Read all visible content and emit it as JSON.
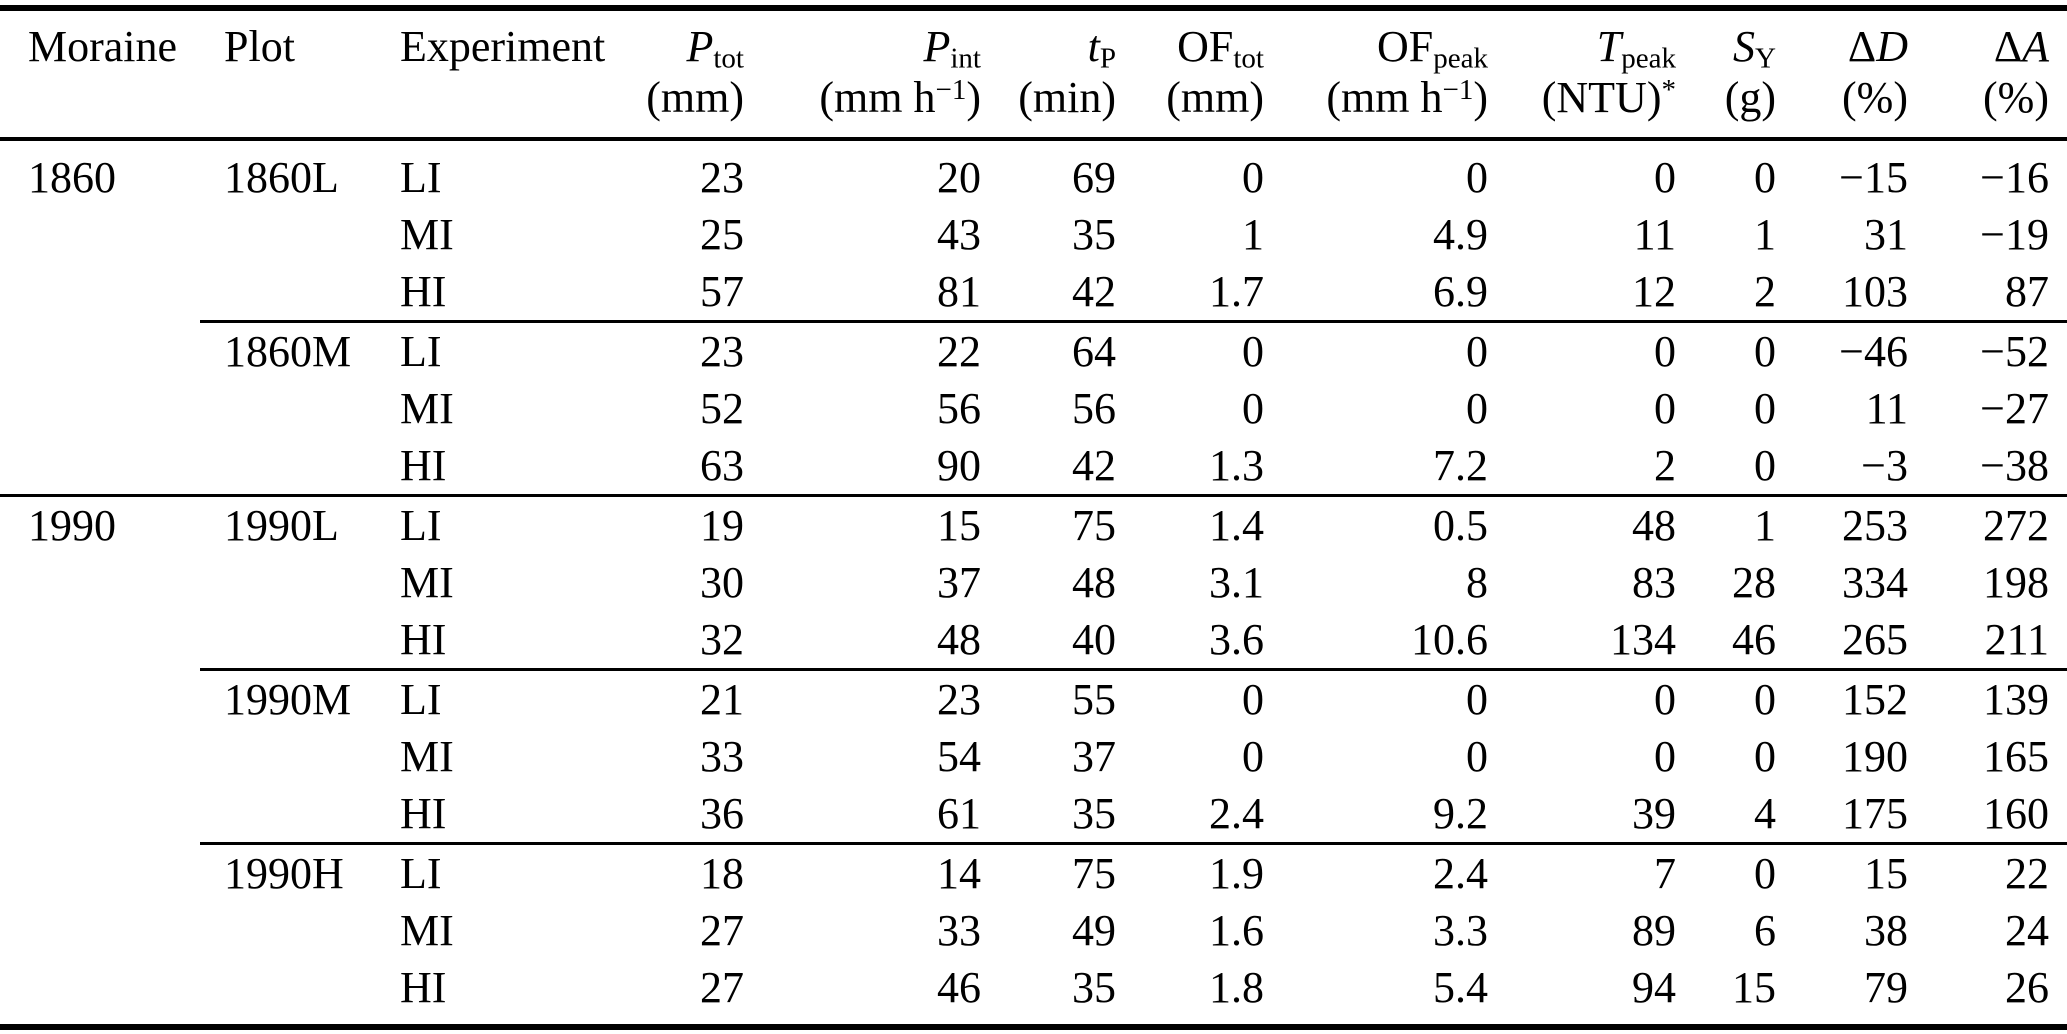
{
  "table": {
    "columns": [
      {
        "id": "moraine",
        "align": "left",
        "label": {
          "pre": "Moraine",
          "main": "",
          "main_italic": false,
          "sub": ""
        },
        "unit": {
          "pre": "",
          "sup": "",
          "post": ""
        }
      },
      {
        "id": "plot",
        "align": "left",
        "label": {
          "pre": "Plot",
          "main": "",
          "main_italic": false,
          "sub": ""
        },
        "unit": {
          "pre": "",
          "sup": "",
          "post": ""
        }
      },
      {
        "id": "experiment",
        "align": "left",
        "label": {
          "pre": "Experiment",
          "main": "",
          "main_italic": false,
          "sub": ""
        },
        "unit": {
          "pre": "",
          "sup": "",
          "post": ""
        }
      },
      {
        "id": "p-tot",
        "align": "right",
        "label": {
          "pre": "",
          "main": "P",
          "main_italic": true,
          "sub": "tot"
        },
        "unit": {
          "pre": "(mm)",
          "sup": "",
          "post": ""
        }
      },
      {
        "id": "p-int",
        "align": "right",
        "label": {
          "pre": "",
          "main": "P",
          "main_italic": true,
          "sub": "int"
        },
        "unit": {
          "pre": "(mm h",
          "sup": "−1",
          "post": ")"
        }
      },
      {
        "id": "t-p",
        "align": "right",
        "label": {
          "pre": "",
          "main": "t",
          "main_italic": true,
          "sub": "P"
        },
        "unit": {
          "pre": "(min)",
          "sup": "",
          "post": ""
        }
      },
      {
        "id": "of-tot",
        "align": "right",
        "label": {
          "pre": "",
          "main": "OF",
          "main_italic": false,
          "sub": "tot"
        },
        "unit": {
          "pre": "(mm)",
          "sup": "",
          "post": ""
        }
      },
      {
        "id": "of-peak",
        "align": "right",
        "label": {
          "pre": "",
          "main": "OF",
          "main_italic": false,
          "sub": "peak"
        },
        "unit": {
          "pre": "(mm h",
          "sup": "−1",
          "post": ")"
        }
      },
      {
        "id": "t-peak",
        "align": "right",
        "label": {
          "pre": "",
          "main": "T",
          "main_italic": true,
          "sub": "peak"
        },
        "unit": {
          "pre": "(NTU)",
          "sup": "*",
          "post": ""
        }
      },
      {
        "id": "s-y",
        "align": "right",
        "label": {
          "pre": "",
          "main": "S",
          "main_italic": true,
          "sub": "Y"
        },
        "unit": {
          "pre": "(g)",
          "sup": "",
          "post": ""
        }
      },
      {
        "id": "delta-d",
        "align": "right",
        "label": {
          "pre": "Δ",
          "main": "D",
          "main_italic": true,
          "sub": ""
        },
        "unit": {
          "pre": "(%)",
          "sup": "",
          "post": ""
        }
      },
      {
        "id": "delta-a",
        "align": "right",
        "label": {
          "pre": "Δ",
          "main": "A",
          "main_italic": true,
          "sub": ""
        },
        "unit": {
          "pre": "(%)",
          "sup": "",
          "post": ""
        }
      }
    ],
    "groups": [
      {
        "moraine": "1860",
        "plot": "1860L",
        "separator": "none",
        "rows": [
          {
            "experiment": "LI",
            "values": [
              "23",
              "20",
              "69",
              "0",
              "0",
              "0",
              "0",
              "−15",
              "−16"
            ]
          },
          {
            "experiment": "MI",
            "values": [
              "25",
              "43",
              "35",
              "1",
              "4.9",
              "11",
              "1",
              "31",
              "−19"
            ]
          },
          {
            "experiment": "HI",
            "values": [
              "57",
              "81",
              "42",
              "1.7",
              "6.9",
              "12",
              "2",
              "103",
              "87"
            ]
          }
        ]
      },
      {
        "moraine": "",
        "plot": "1860M",
        "separator": "partial",
        "rows": [
          {
            "experiment": "LI",
            "values": [
              "23",
              "22",
              "64",
              "0",
              "0",
              "0",
              "0",
              "−46",
              "−52"
            ]
          },
          {
            "experiment": "MI",
            "values": [
              "52",
              "56",
              "56",
              "0",
              "0",
              "0",
              "0",
              "11",
              "−27"
            ]
          },
          {
            "experiment": "HI",
            "values": [
              "63",
              "90",
              "42",
              "1.3",
              "7.2",
              "2",
              "0",
              "−3",
              "−38"
            ]
          }
        ]
      },
      {
        "moraine": "1990",
        "plot": "1990L",
        "separator": "full",
        "rows": [
          {
            "experiment": "LI",
            "values": [
              "19",
              "15",
              "75",
              "1.4",
              "0.5",
              "48",
              "1",
              "253",
              "272"
            ]
          },
          {
            "experiment": "MI",
            "values": [
              "30",
              "37",
              "48",
              "3.1",
              "8",
              "83",
              "28",
              "334",
              "198"
            ]
          },
          {
            "experiment": "HI",
            "values": [
              "32",
              "48",
              "40",
              "3.6",
              "10.6",
              "134",
              "46",
              "265",
              "211"
            ]
          }
        ]
      },
      {
        "moraine": "",
        "plot": "1990M",
        "separator": "partial",
        "rows": [
          {
            "experiment": "LI",
            "values": [
              "21",
              "23",
              "55",
              "0",
              "0",
              "0",
              "0",
              "152",
              "139"
            ]
          },
          {
            "experiment": "MI",
            "values": [
              "33",
              "54",
              "37",
              "0",
              "0",
              "0",
              "0",
              "190",
              "165"
            ]
          },
          {
            "experiment": "HI",
            "values": [
              "36",
              "61",
              "35",
              "2.4",
              "9.2",
              "39",
              "4",
              "175",
              "160"
            ]
          }
        ]
      },
      {
        "moraine": "",
        "plot": "1990H",
        "separator": "partial",
        "rows": [
          {
            "experiment": "LI",
            "values": [
              "18",
              "14",
              "75",
              "1.9",
              "2.4",
              "7",
              "0",
              "15",
              "22"
            ]
          },
          {
            "experiment": "MI",
            "values": [
              "27",
              "33",
              "49",
              "1.6",
              "3.3",
              "89",
              "6",
              "38",
              "24"
            ]
          },
          {
            "experiment": "HI",
            "values": [
              "27",
              "46",
              "35",
              "1.8",
              "5.4",
              "94",
              "15",
              "79",
              "26"
            ]
          }
        ]
      }
    ]
  }
}
